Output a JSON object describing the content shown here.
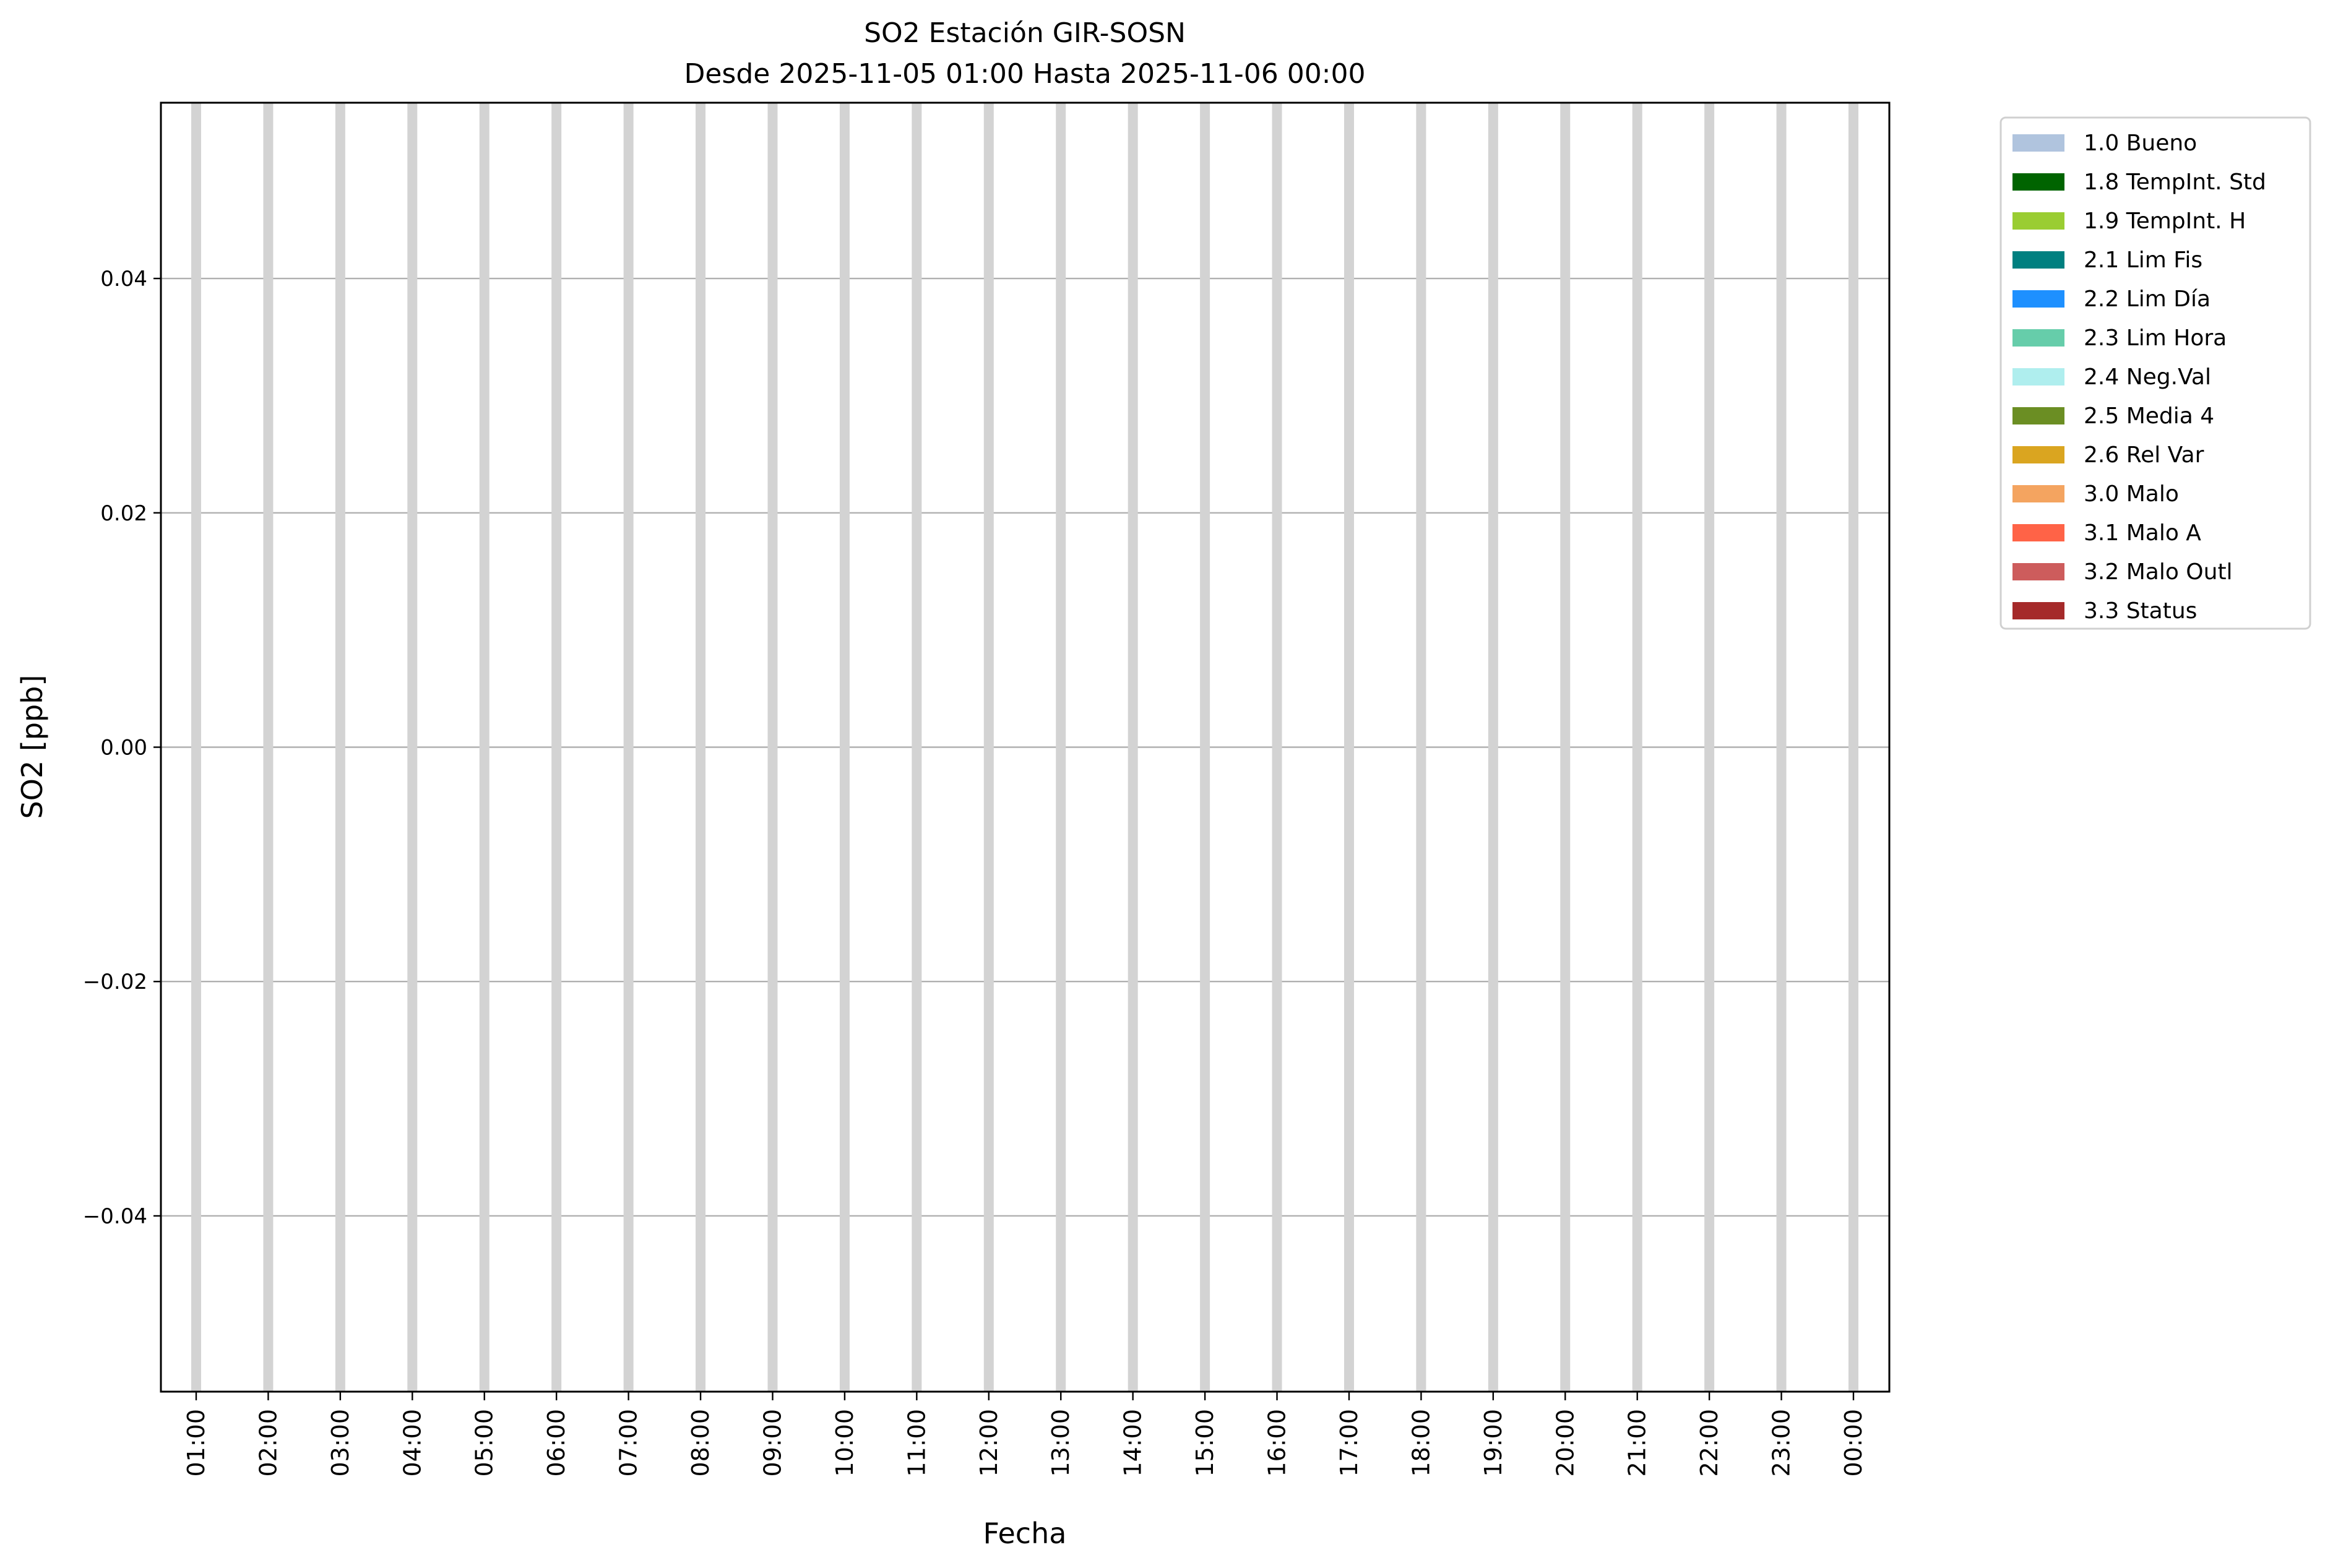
{
  "chart_data": {
    "type": "bar",
    "title": "SO2 Estación GIR-SOSN",
    "subtitle": "Desde 2025-11-05 01:00 Hasta 2025-11-06 00:00",
    "xlabel": "Fecha",
    "ylabel": "SO2 [ppb]",
    "ylim": [
      -0.055,
      0.055
    ],
    "yticks": [
      -0.04,
      -0.02,
      0.0,
      0.02,
      0.04
    ],
    "ytick_labels": [
      "−0.04",
      "−0.02",
      "0.00",
      "0.02",
      "0.04"
    ],
    "categories": [
      "01:00",
      "02:00",
      "03:00",
      "04:00",
      "05:00",
      "06:00",
      "07:00",
      "08:00",
      "09:00",
      "10:00",
      "11:00",
      "12:00",
      "13:00",
      "14:00",
      "15:00",
      "16:00",
      "17:00",
      "18:00",
      "19:00",
      "20:00",
      "21:00",
      "22:00",
      "23:00",
      "00:00"
    ],
    "values": [
      null,
      null,
      null,
      null,
      null,
      null,
      null,
      null,
      null,
      null,
      null,
      null,
      null,
      null,
      null,
      null,
      null,
      null,
      null,
      null,
      null,
      null,
      null,
      null
    ],
    "grid": true,
    "legend_placement": "outside-top-right",
    "legend": [
      {
        "label": "1.0 Bueno",
        "color": "#b0c4de"
      },
      {
        "label": "1.8 TempInt. Std",
        "color": "#006400"
      },
      {
        "label": "1.9 TempInt. H",
        "color": "#9acd32"
      },
      {
        "label": "2.1 Lim Fis",
        "color": "#008080"
      },
      {
        "label": "2.2 Lim Día",
        "color": "#1e90ff"
      },
      {
        "label": "2.3 Lim Hora",
        "color": "#66cdaa"
      },
      {
        "label": "2.4 Neg.Val",
        "color": "#afeeee"
      },
      {
        "label": "2.5 Media 4",
        "color": "#6b8e23"
      },
      {
        "label": "2.6 Rel Var",
        "color": "#daa520"
      },
      {
        "label": "3.0 Malo",
        "color": "#f4a460"
      },
      {
        "label": "3.1 Malo A",
        "color": "#ff6347"
      },
      {
        "label": "3.2 Malo Outl",
        "color": "#cd5c5c"
      },
      {
        "label": "3.3 Status",
        "color": "#a52a2a"
      }
    ]
  }
}
